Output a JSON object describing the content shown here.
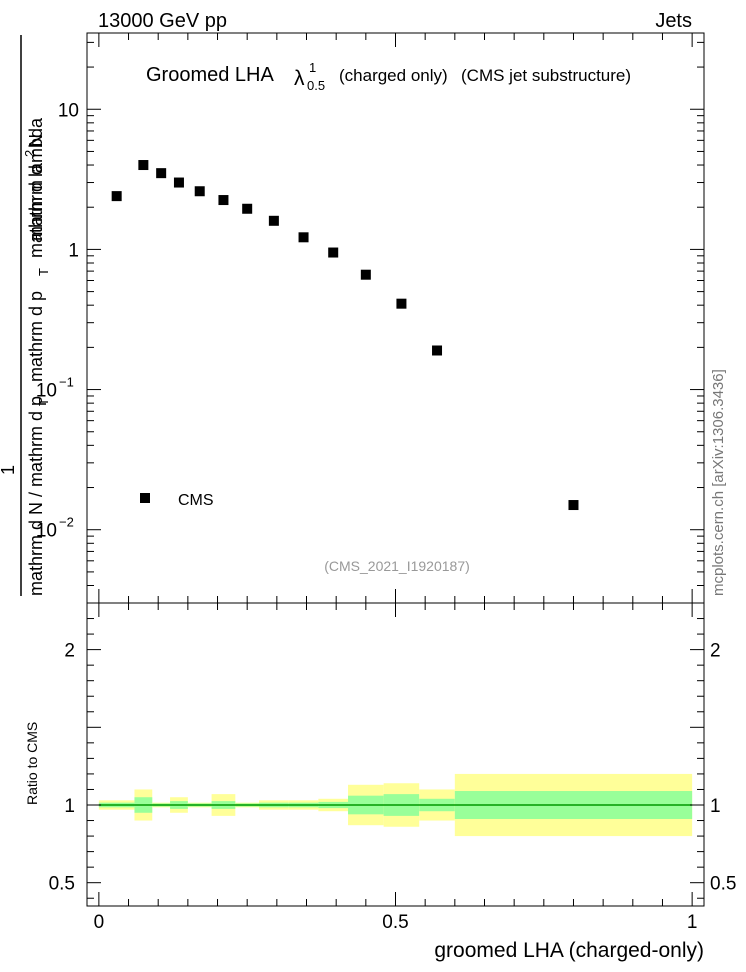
{
  "header": {
    "left": "13000 GeV pp",
    "right": "Jets"
  },
  "side_label": "mcplots.cern.ch [arXiv:1306.3436]",
  "chart_data": [
    {
      "type": "scatter",
      "title_main": "Groomed LHA",
      "title_symbol": "λ",
      "title_sup": "1",
      "title_sub": "0.5",
      "title_tail_1": "(charged only)",
      "title_tail_2": "(CMS jet substructure)",
      "ylabel_num": "1",
      "ylabel_den_top": "mathrm d N / mathrm d p",
      "ylabel_den_sub": "T",
      "ylabel_num_full": "mathrm d",
      "ylabel_num_sup": "2",
      "ylabel_num_rest": "N",
      "ylabel_mid_a": "mathrm d p",
      "ylabel_mid_sub": "T",
      "ylabel_mid_b": "mathrm d lambda",
      "yscale": "log",
      "ylim": [
        0.003,
        35
      ],
      "xlim": [
        -0.02,
        1.02
      ],
      "yticks": [
        {
          "value": 10,
          "label": "10"
        },
        {
          "value": 1,
          "label": "1"
        },
        {
          "value": 0.1,
          "label": "10",
          "sup": "−1"
        },
        {
          "value": 0.01,
          "label": "10",
          "sup": "−2"
        }
      ],
      "legend": "CMS",
      "legend_position": "lower-left",
      "watermark": "(CMS_2021_I1920187)",
      "series": [
        {
          "name": "CMS",
          "color": "#000000",
          "points": [
            {
              "x": 0.03,
              "y": 2.4
            },
            {
              "x": 0.075,
              "y": 4.0
            },
            {
              "x": 0.105,
              "y": 3.5
            },
            {
              "x": 0.135,
              "y": 3.0
            },
            {
              "x": 0.17,
              "y": 2.6
            },
            {
              "x": 0.21,
              "y": 2.25
            },
            {
              "x": 0.25,
              "y": 1.95
            },
            {
              "x": 0.295,
              "y": 1.6
            },
            {
              "x": 0.345,
              "y": 1.22
            },
            {
              "x": 0.395,
              "y": 0.95
            },
            {
              "x": 0.45,
              "y": 0.66
            },
            {
              "x": 0.51,
              "y": 0.41
            },
            {
              "x": 0.57,
              "y": 0.19
            },
            {
              "x": 0.8,
              "y": 0.015
            }
          ]
        }
      ]
    },
    {
      "type": "area",
      "ylabel": "Ratio to CMS",
      "xlabel": "groomed LHA (charged-only)",
      "ylim": [
        0.35,
        2.3
      ],
      "xlim": [
        -0.02,
        1.02
      ],
      "yticks": [
        {
          "value": 2,
          "label": "2"
        },
        {
          "value": 1,
          "label": "1"
        },
        {
          "value": 0.5,
          "label": "0.5"
        }
      ],
      "xticks": [
        {
          "value": 0,
          "label": "0"
        },
        {
          "value": 0.5,
          "label": "0.5"
        },
        {
          "value": 1,
          "label": "1"
        }
      ],
      "band_colors": {
        "outer": "#ffff99",
        "inner": "#99ff99",
        "line": "#009900"
      },
      "bins": [
        {
          "x0": 0.0,
          "x1": 0.06,
          "outer": 0.03,
          "inner": 0.015
        },
        {
          "x0": 0.06,
          "x1": 0.09,
          "outer": 0.1,
          "inner": 0.05
        },
        {
          "x0": 0.09,
          "x1": 0.12,
          "outer": 0.015,
          "inner": 0.01
        },
        {
          "x0": 0.12,
          "x1": 0.15,
          "outer": 0.05,
          "inner": 0.025
        },
        {
          "x0": 0.15,
          "x1": 0.19,
          "outer": 0.015,
          "inner": 0.01
        },
        {
          "x0": 0.19,
          "x1": 0.23,
          "outer": 0.07,
          "inner": 0.025
        },
        {
          "x0": 0.23,
          "x1": 0.27,
          "outer": 0.015,
          "inner": 0.01
        },
        {
          "x0": 0.27,
          "x1": 0.32,
          "outer": 0.03,
          "inner": 0.015
        },
        {
          "x0": 0.32,
          "x1": 0.37,
          "outer": 0.03,
          "inner": 0.015
        },
        {
          "x0": 0.37,
          "x1": 0.42,
          "outer": 0.04,
          "inner": 0.02
        },
        {
          "x0": 0.42,
          "x1": 0.48,
          "outer": 0.13,
          "inner": 0.06
        },
        {
          "x0": 0.48,
          "x1": 0.54,
          "outer": 0.14,
          "inner": 0.07
        },
        {
          "x0": 0.54,
          "x1": 0.6,
          "outer": 0.1,
          "inner": 0.04
        },
        {
          "x0": 0.6,
          "x1": 1.0,
          "outer": 0.2,
          "inner": 0.09
        }
      ]
    }
  ]
}
